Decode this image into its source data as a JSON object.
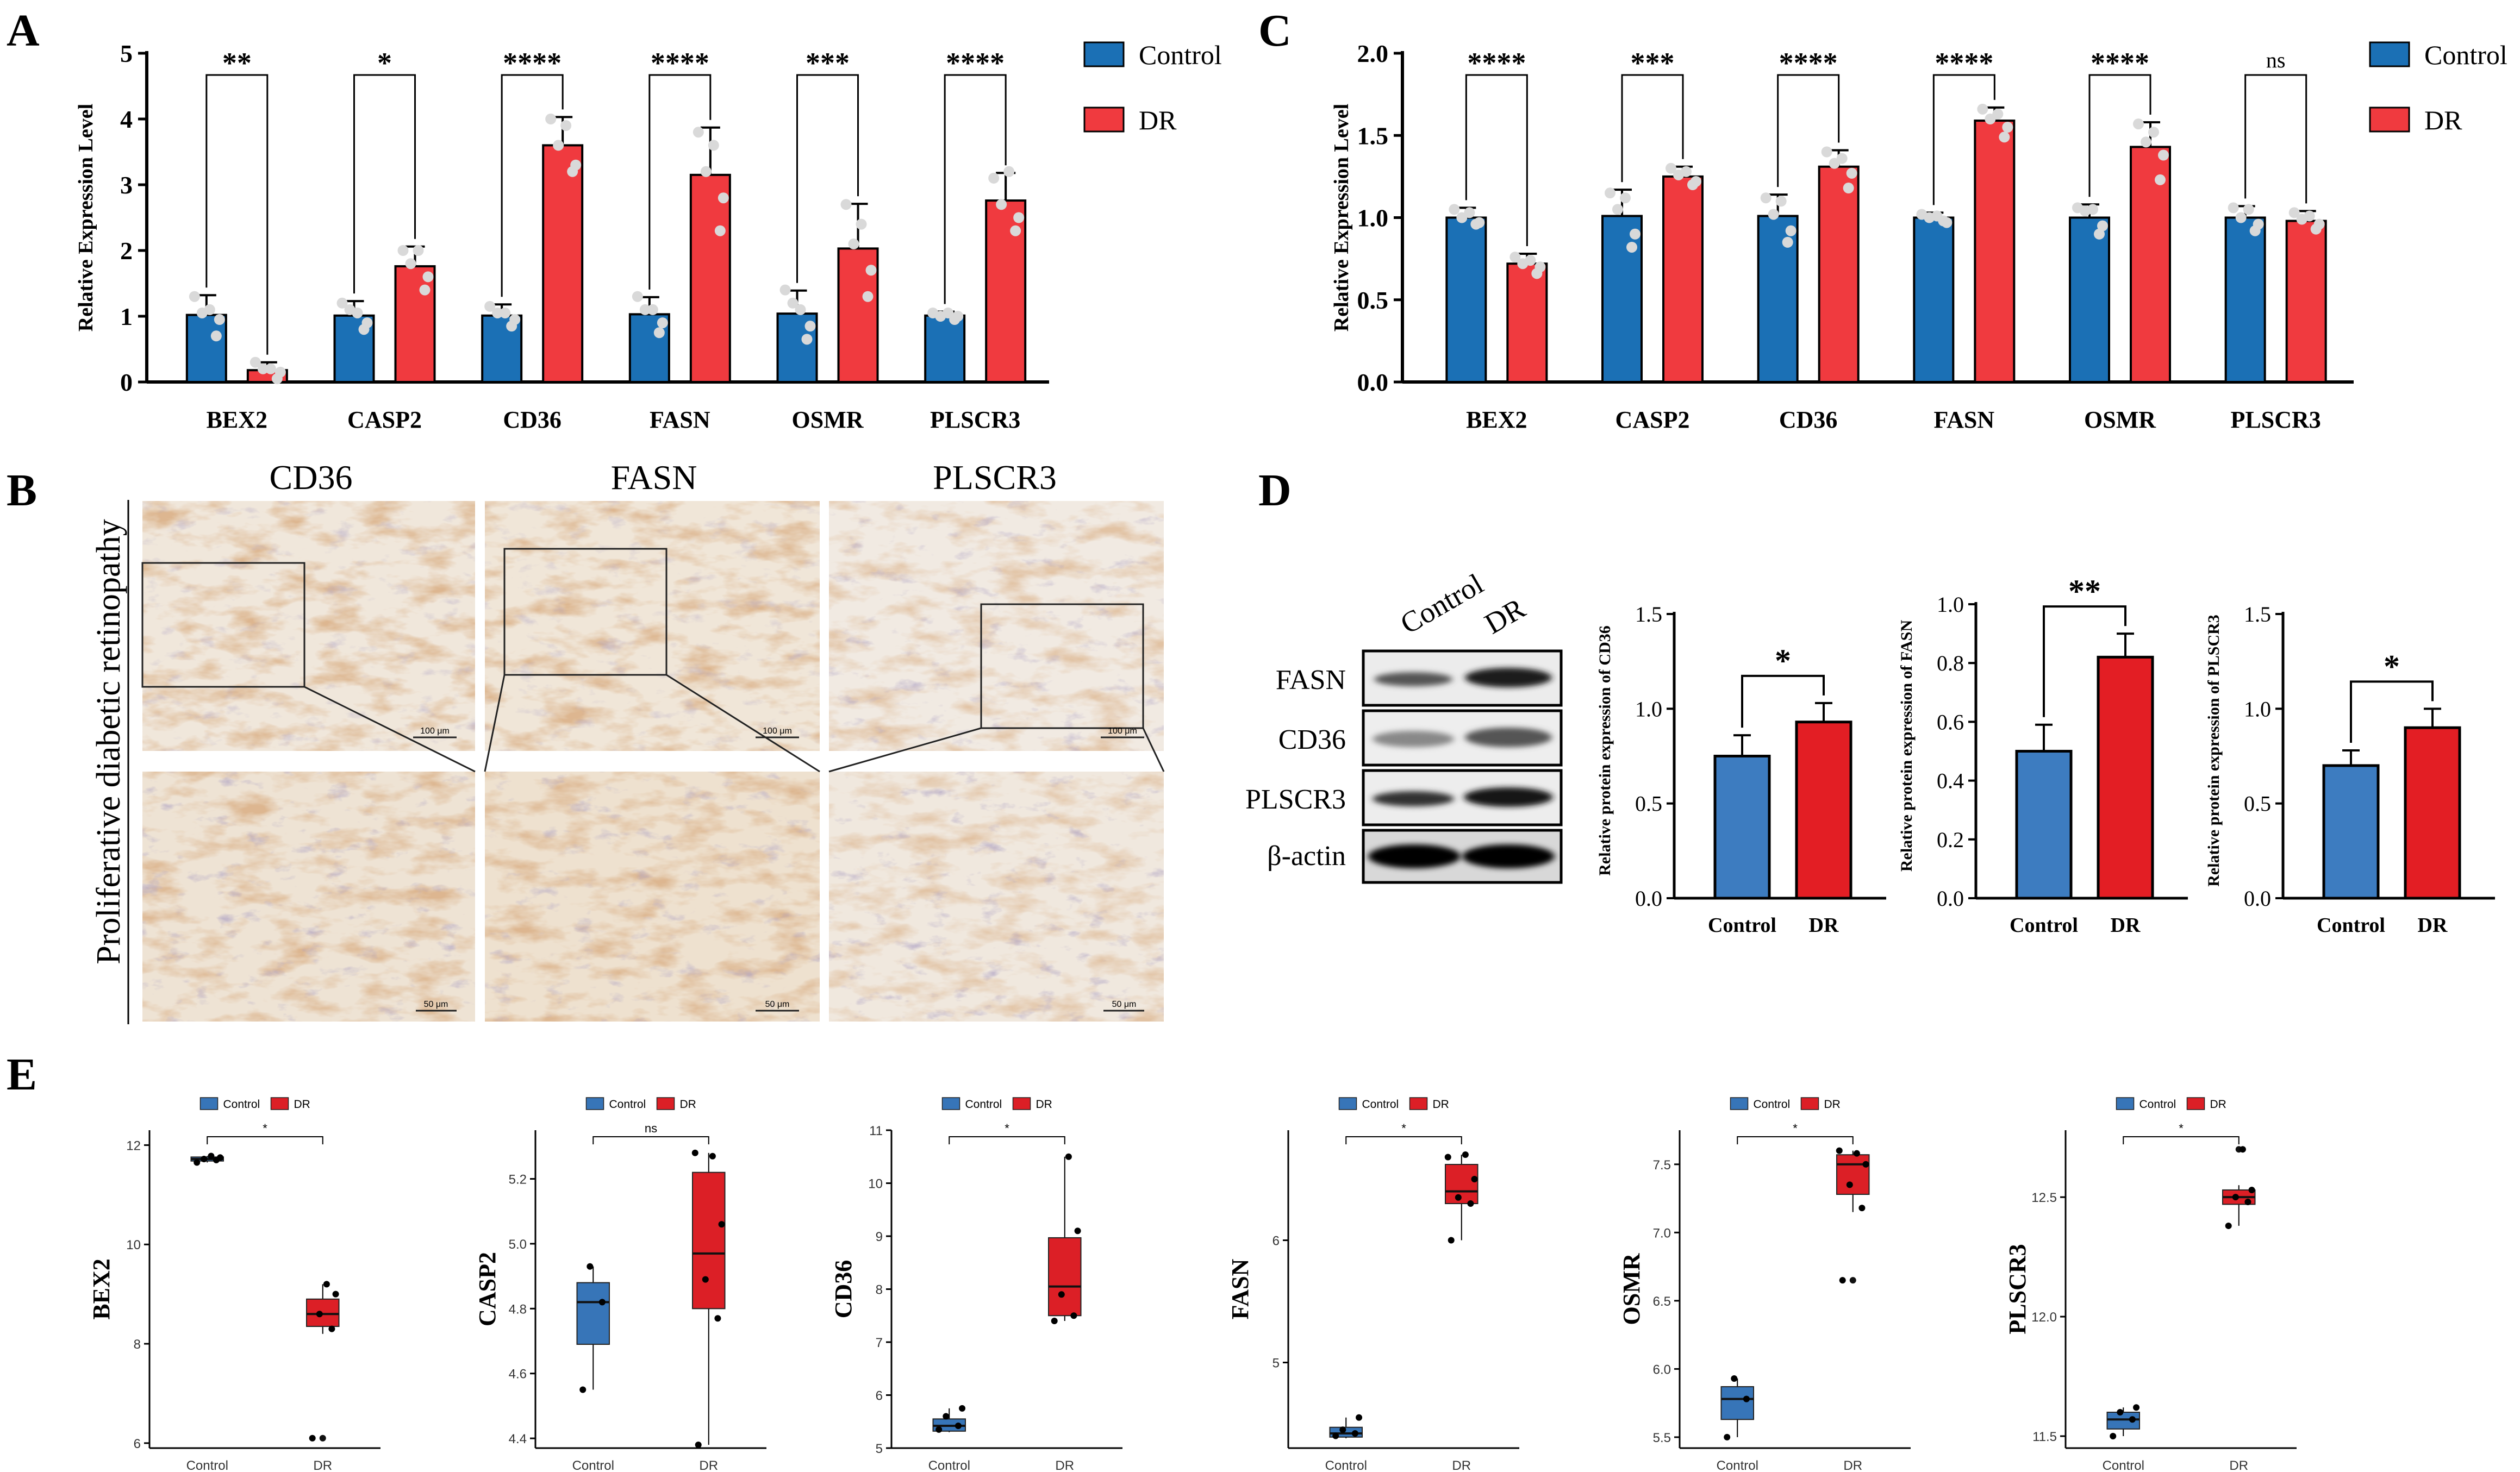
{
  "colors": {
    "control": "#1B70B5",
    "dr": "#F03A3F",
    "wb_control": "#3D7CC0",
    "wb_dr": "#E31E24",
    "box_control": "#3775B8",
    "box_dr": "#DC1F26",
    "dot": "#D9D9D9",
    "axis": "#000000",
    "tissue_bg": "#EFE4D6",
    "tissue_fg": "#B97A48"
  },
  "panel_labels": {
    "A": "A",
    "B": "B",
    "C": "C",
    "D": "D",
    "E": "E"
  },
  "chart_data": [
    {
      "id": "A",
      "type": "bar",
      "ylabel": "Relative Expression Level",
      "ylim": [
        0,
        5
      ],
      "yticks": [
        0,
        1,
        2,
        3,
        4,
        5
      ],
      "ytick_labels": [
        "0",
        "1",
        "2",
        "3",
        "4",
        "5"
      ],
      "categories": [
        "BEX2",
        "CASP2",
        "CD36",
        "FASN",
        "OSMR",
        "PLSCR3"
      ],
      "series": [
        {
          "name": "Control",
          "values": [
            1.02,
            1.01,
            1.01,
            1.03,
            1.04,
            1.01
          ],
          "errors": [
            0.3,
            0.22,
            0.17,
            0.26,
            0.35,
            0.06
          ],
          "points": [
            [
              1.3,
              0.7,
              1.05,
              0.95,
              1.1
            ],
            [
              1.2,
              0.8,
              1.1,
              0.9,
              1.05
            ],
            [
              1.15,
              0.85,
              1.05,
              0.95,
              1.05
            ],
            [
              1.3,
              0.75,
              1.1,
              0.9,
              1.1
            ],
            [
              1.4,
              0.65,
              1.2,
              0.85,
              1.1
            ],
            [
              1.05,
              0.95,
              1.0,
              1.0,
              1.05
            ]
          ]
        },
        {
          "name": "DR",
          "values": [
            0.18,
            1.76,
            3.6,
            3.15,
            2.03,
            2.76
          ],
          "errors": [
            0.12,
            0.3,
            0.43,
            0.72,
            0.68,
            0.42
          ],
          "points": [
            [
              0.3,
              0.05,
              0.2,
              0.15,
              0.2
            ],
            [
              2.0,
              1.4,
              1.8,
              1.6,
              2.0
            ],
            [
              4.0,
              3.2,
              3.6,
              3.3,
              3.9
            ],
            [
              3.8,
              2.3,
              3.2,
              2.8,
              3.6
            ],
            [
              2.7,
              1.3,
              2.1,
              1.7,
              2.4
            ],
            [
              3.1,
              2.3,
              2.7,
              2.5,
              3.2
            ]
          ]
        }
      ],
      "significance": [
        "**",
        "*",
        "****",
        "****",
        "***",
        "****"
      ],
      "legend": [
        "Control",
        "DR"
      ]
    },
    {
      "id": "C",
      "type": "bar",
      "ylabel": "Relative Expression Level",
      "ylim": [
        0,
        2.0
      ],
      "yticks": [
        0,
        0.5,
        1.0,
        1.5,
        2.0
      ],
      "ytick_labels": [
        "0.0",
        "0.5",
        "1.0",
        "1.5",
        "2.0"
      ],
      "categories": [
        "BEX2",
        "CASP2",
        "CD36",
        "FASN",
        "OSMR",
        "PLSCR3"
      ],
      "series": [
        {
          "name": "Control",
          "values": [
            1.0,
            1.01,
            1.01,
            1.0,
            1.0,
            1.0
          ],
          "errors": [
            0.06,
            0.16,
            0.13,
            0.03,
            0.08,
            0.07
          ],
          "points": [
            [
              1.05,
              0.96,
              1.0,
              0.97,
              1.03
            ],
            [
              1.15,
              0.82,
              1.05,
              0.9,
              1.12
            ],
            [
              1.12,
              0.85,
              1.02,
              0.92,
              1.1
            ],
            [
              1.02,
              0.98,
              1.0,
              0.97,
              1.01
            ],
            [
              1.06,
              0.9,
              1.04,
              0.95,
              1.05
            ],
            [
              1.06,
              0.92,
              1.0,
              0.96,
              1.05
            ]
          ]
        },
        {
          "name": "DR",
          "values": [
            0.72,
            1.25,
            1.31,
            1.59,
            1.43,
            0.98
          ],
          "errors": [
            0.06,
            0.06,
            0.1,
            0.08,
            0.15,
            0.06
          ],
          "points": [
            [
              0.76,
              0.66,
              0.72,
              0.7,
              0.74
            ],
            [
              1.3,
              1.2,
              1.26,
              1.22,
              1.28
            ],
            [
              1.4,
              1.18,
              1.33,
              1.27,
              1.36
            ],
            [
              1.66,
              1.49,
              1.6,
              1.55,
              1.63
            ],
            [
              1.57,
              1.23,
              1.46,
              1.38,
              1.52
            ],
            [
              1.03,
              0.93,
              0.99,
              0.96,
              1.01
            ]
          ]
        }
      ],
      "significance": [
        "****",
        "***",
        "****",
        "****",
        "****",
        "ns"
      ],
      "legend": [
        "Control",
        "DR"
      ]
    },
    {
      "id": "D1",
      "type": "bar",
      "ylabel": "Relative protein expression of CD36",
      "ylim": [
        0,
        1.5
      ],
      "yticks": [
        0,
        0.5,
        1.0,
        1.5
      ],
      "ytick_labels": [
        "0.0",
        "0.5",
        "1.0",
        "1.5"
      ],
      "categories": [
        "Control",
        "DR"
      ],
      "values": [
        0.75,
        0.93
      ],
      "errors": [
        0.11,
        0.1
      ],
      "significance": "*"
    },
    {
      "id": "D2",
      "type": "bar",
      "ylabel": "Relative protein expression of FASN",
      "ylim": [
        0,
        1.0
      ],
      "yticks": [
        0,
        0.2,
        0.4,
        0.6,
        0.8,
        1.0
      ],
      "ytick_labels": [
        "0.0",
        "0.2",
        "0.4",
        "0.6",
        "0.8",
        "1.0"
      ],
      "categories": [
        "Control",
        "DR"
      ],
      "values": [
        0.5,
        0.82
      ],
      "errors": [
        0.09,
        0.08
      ],
      "significance": "**"
    },
    {
      "id": "D3",
      "type": "bar",
      "ylabel": "Relative protein expression of PLSCR3",
      "ylim": [
        0,
        1.5
      ],
      "yticks": [
        0,
        0.5,
        1.0,
        1.5
      ],
      "ytick_labels": [
        "0.0",
        "0.5",
        "1.0",
        "1.5"
      ],
      "categories": [
        "Control",
        "DR"
      ],
      "values": [
        0.7,
        0.9
      ],
      "errors": [
        0.08,
        0.1
      ],
      "significance": "*"
    },
    {
      "id": "E1",
      "type": "box",
      "ylabel": "BEX2",
      "ylim": [
        5.9,
        12.3
      ],
      "yticks": [
        6,
        8,
        10,
        12
      ],
      "ytick_labels": [
        "6",
        "8",
        "10",
        "12"
      ],
      "categories": [
        "Control",
        "DR"
      ],
      "significance": "*",
      "legend": [
        "Control",
        "DR"
      ],
      "groups": [
        {
          "min": 11.65,
          "q1": 11.68,
          "median": 11.72,
          "q3": 11.76,
          "max": 11.78,
          "points": [
            11.65,
            11.7,
            11.72,
            11.75,
            11.78
          ]
        },
        {
          "min": 8.2,
          "q1": 8.35,
          "median": 8.6,
          "q3": 8.9,
          "max": 9.2,
          "outliers": [
            6.1
          ],
          "points": [
            6.1,
            8.3,
            8.6,
            9.0,
            9.2
          ]
        }
      ]
    },
    {
      "id": "E2",
      "type": "box",
      "ylabel": "CASP2",
      "ylim": [
        4.37,
        5.35
      ],
      "yticks": [
        4.4,
        4.6,
        4.8,
        5.0,
        5.2
      ],
      "ytick_labels": [
        "4.4",
        "4.6",
        "4.8",
        "5.0",
        "5.2"
      ],
      "categories": [
        "Control",
        "DR"
      ],
      "significance": "ns",
      "legend": [
        "Control",
        "DR"
      ],
      "groups": [
        {
          "min": 4.55,
          "q1": 4.69,
          "median": 4.82,
          "q3": 4.88,
          "max": 4.93,
          "points": [
            4.55,
            4.82,
            4.93
          ]
        },
        {
          "min": 4.38,
          "q1": 4.8,
          "median": 4.97,
          "q3": 5.22,
          "max": 5.28,
          "points": [
            4.38,
            4.77,
            4.89,
            5.06,
            5.27,
            5.28
          ]
        }
      ]
    },
    {
      "id": "E3",
      "type": "box",
      "ylabel": "CD36",
      "ylim": [
        5.0,
        11.0
      ],
      "yticks": [
        5,
        6,
        7,
        8,
        9,
        10,
        11
      ],
      "ytick_labels": [
        "5",
        "6",
        "7",
        "8",
        "9",
        "10",
        "11"
      ],
      "categories": [
        "Control",
        "DR"
      ],
      "significance": "*",
      "legend": [
        "Control",
        "DR"
      ],
      "groups": [
        {
          "min": 5.3,
          "q1": 5.32,
          "median": 5.42,
          "q3": 5.55,
          "max": 5.75,
          "points": [
            5.35,
            5.42,
            5.6,
            5.75
          ]
        },
        {
          "min": 7.4,
          "q1": 7.5,
          "median": 8.05,
          "q3": 8.97,
          "max": 10.5,
          "points": [
            7.4,
            7.5,
            7.9,
            9.1,
            10.5
          ]
        }
      ]
    },
    {
      "id": "E4",
      "type": "box",
      "ylabel": "FASN",
      "ylim": [
        4.3,
        6.9
      ],
      "yticks": [
        5,
        6
      ],
      "ytick_labels": [
        "5",
        "6"
      ],
      "categories": [
        "Control",
        "DR"
      ],
      "significance": "*",
      "legend": [
        "Control",
        "DR"
      ],
      "groups": [
        {
          "min": 4.38,
          "q1": 4.39,
          "median": 4.42,
          "q3": 4.47,
          "max": 4.55,
          "points": [
            4.4,
            4.42,
            4.45,
            4.55
          ]
        },
        {
          "min": 6.0,
          "q1": 6.3,
          "median": 6.4,
          "q3": 6.62,
          "max": 6.7,
          "points": [
            6.0,
            6.3,
            6.35,
            6.5,
            6.7,
            6.68
          ]
        }
      ]
    },
    {
      "id": "E5",
      "type": "box",
      "ylabel": "OSMR",
      "ylim": [
        5.42,
        7.75
      ],
      "yticks": [
        5.5,
        6.0,
        6.5,
        7.0,
        7.5
      ],
      "ytick_labels": [
        "5.5",
        "6.0",
        "6.5",
        "7.0",
        "7.5"
      ],
      "categories": [
        "Control",
        "DR"
      ],
      "significance": "*",
      "legend": [
        "Control",
        "DR"
      ],
      "groups": [
        {
          "min": 5.5,
          "q1": 5.63,
          "median": 5.78,
          "q3": 5.87,
          "max": 5.93,
          "points": [
            5.5,
            5.78,
            5.93
          ]
        },
        {
          "min": 7.15,
          "q1": 7.28,
          "median": 7.5,
          "q3": 7.57,
          "max": 7.6,
          "outliers": [
            6.65
          ],
          "points": [
            6.65,
            7.18,
            7.35,
            7.5,
            7.58,
            7.6
          ]
        }
      ]
    },
    {
      "id": "E6",
      "type": "box",
      "ylabel": "PLSCR3",
      "ylim": [
        11.45,
        12.78
      ],
      "yticks": [
        11.5,
        12.0,
        12.5
      ],
      "ytick_labels": [
        "11.5",
        "12.0",
        "12.5"
      ],
      "categories": [
        "Control",
        "DR"
      ],
      "significance": "*",
      "legend": [
        "Control",
        "DR"
      ],
      "groups": [
        {
          "min": 11.5,
          "q1": 11.53,
          "median": 11.57,
          "q3": 11.6,
          "max": 11.62,
          "points": [
            11.5,
            11.57,
            11.6,
            11.62
          ]
        },
        {
          "min": 12.38,
          "q1": 12.47,
          "median": 12.5,
          "q3": 12.53,
          "max": 12.55,
          "outliers": [
            12.7
          ],
          "points": [
            12.38,
            12.48,
            12.5,
            12.53,
            12.7
          ]
        }
      ]
    }
  ],
  "ihc": {
    "side_label": "Proliferative diabetic retinopathy",
    "titles": [
      "CD36",
      "FASN",
      "PLSCR3"
    ],
    "scale_top": "100 μm",
    "scale_bottom": "50 μm"
  },
  "western": {
    "lanes": [
      "Control",
      "DR"
    ],
    "rows": [
      "FASN",
      "CD36",
      "PLSCR3",
      "β-actin"
    ]
  }
}
